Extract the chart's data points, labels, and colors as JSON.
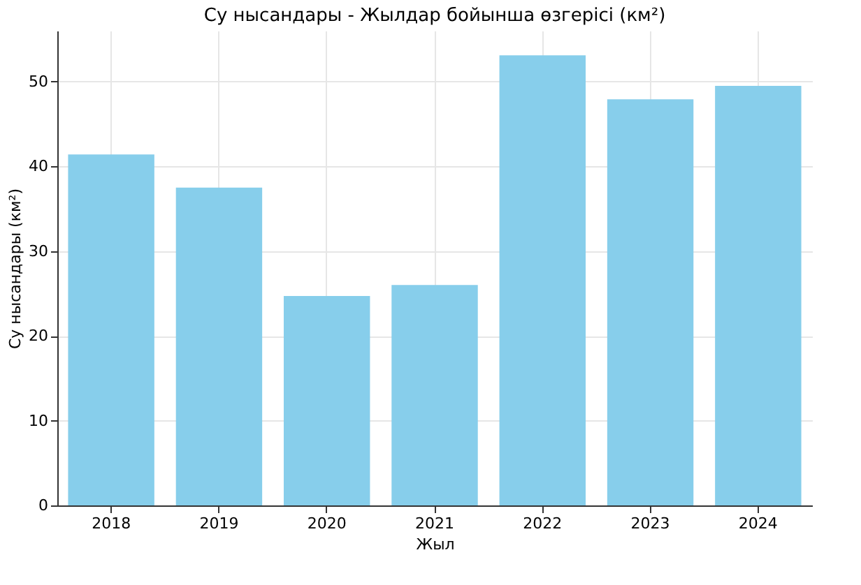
{
  "chart_data": {
    "type": "bar",
    "title": "Су нысандары - Жылдар бойынша өзгерісі (км²)",
    "xlabel": "Жыл",
    "ylabel": "Су нысандары (км²)",
    "categories": [
      "2018",
      "2019",
      "2020",
      "2021",
      "2022",
      "2023",
      "2024"
    ],
    "values": [
      41.4,
      37.5,
      24.7,
      26.0,
      53.1,
      47.9,
      49.5
    ],
    "color": "#87ceeb",
    "ylim": [
      0,
      56
    ],
    "yticks": [
      0,
      10,
      20,
      30,
      40,
      50
    ],
    "grid": true
  }
}
